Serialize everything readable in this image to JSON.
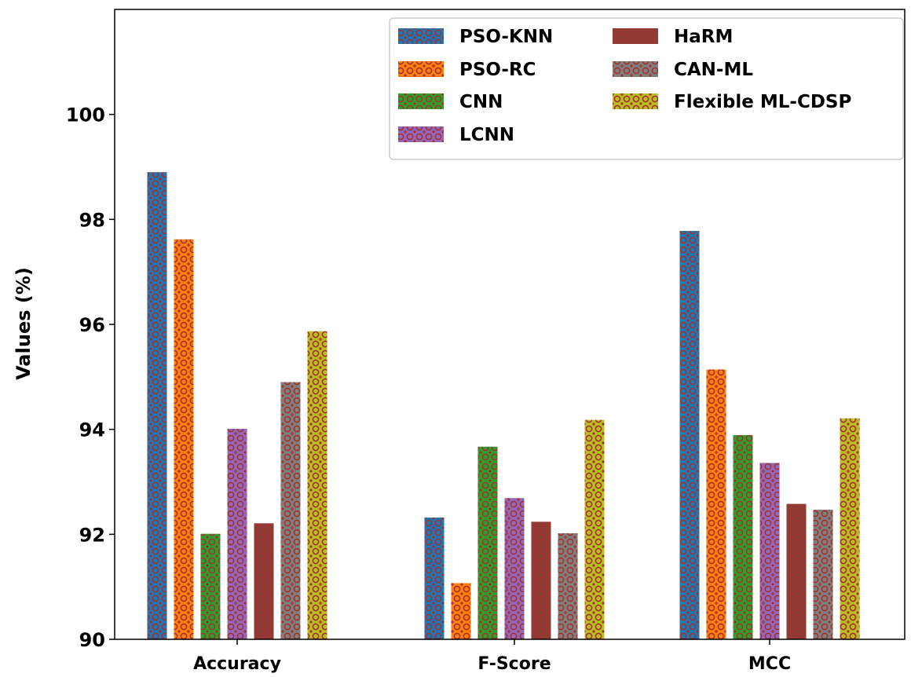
{
  "chart_data": {
    "type": "bar",
    "title": "",
    "xlabel": "",
    "ylabel": "Values (%)",
    "ylim": [
      90,
      102
    ],
    "yticks": [
      90,
      92,
      94,
      96,
      98,
      100
    ],
    "grid": false,
    "legend_position": "top-right",
    "categories": [
      "Accuracy",
      "F-Score",
      "MCC"
    ],
    "series": [
      {
        "name": "PSO-KNN",
        "color": "#1f77b4",
        "values": [
          98.9,
          92.32,
          97.78
        ]
      },
      {
        "name": "PSO-RC",
        "color": "#ff7f0e",
        "values": [
          97.62,
          91.07,
          95.14
        ]
      },
      {
        "name": "CNN",
        "color": "#2ca02c",
        "values": [
          92.01,
          93.67,
          93.89
        ]
      },
      {
        "name": "LCNN",
        "color": "#9467bd",
        "values": [
          94.01,
          92.69,
          93.36
        ]
      },
      {
        "name": "HaRM",
        "color": "#8c3d38",
        "values": [
          92.21,
          92.24,
          92.58
        ]
      },
      {
        "name": "CAN-ML",
        "color": "#7f7f7f",
        "values": [
          94.9,
          92.02,
          92.47
        ]
      },
      {
        "name": "Flexible ML-CDSP",
        "color": "#bcbd22",
        "values": [
          95.87,
          94.18,
          94.21
        ]
      }
    ]
  }
}
